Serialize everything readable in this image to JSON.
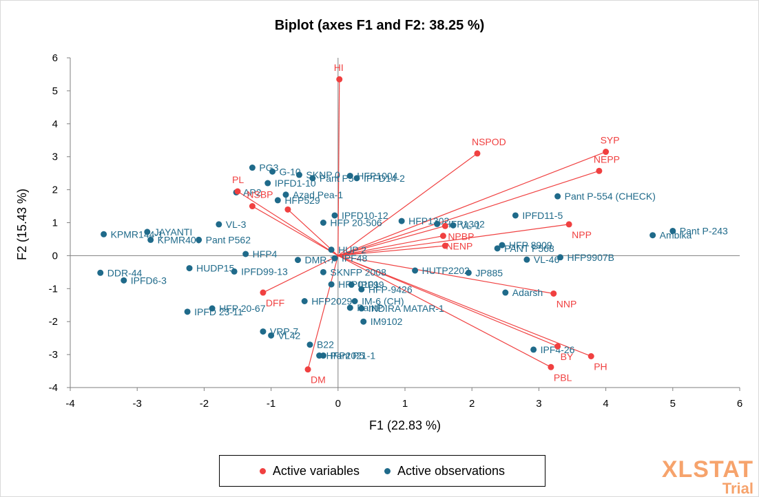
{
  "colors": {
    "variables": "#f04040",
    "observations": "#1f6a8a",
    "axis": "#7f7f7f",
    "tick_text": "#000000",
    "watermark": "#f6a36c"
  },
  "legend": {
    "variables_label": "Active variables",
    "observations_label": "Active observations",
    "placement": "bottom"
  },
  "watermark": {
    "main": "XLSTAT",
    "sub": "Trial"
  },
  "chart_data": {
    "type": "scatter",
    "title": "Biplot (axes F1 and F2: 38.25 %)",
    "xlabel": "F1 (22.83 %)",
    "ylabel": "F2 (15.43 %)",
    "xlim": [
      -4,
      6
    ],
    "ylim": [
      -4,
      6
    ],
    "xticks": [
      -4,
      -3,
      -2,
      -1,
      0,
      1,
      2,
      3,
      4,
      5,
      6
    ],
    "yticks": [
      -4,
      -3,
      -2,
      -1,
      0,
      1,
      2,
      3,
      4,
      5,
      6
    ],
    "grid": false,
    "variables": [
      {
        "label": "HI",
        "x": 0.02,
        "y": 5.35
      },
      {
        "label": "NSPOD",
        "x": 2.08,
        "y": 3.1
      },
      {
        "label": "SYP",
        "x": 4.0,
        "y": 3.15
      },
      {
        "label": "NEPP",
        "x": 3.9,
        "y": 2.57
      },
      {
        "label": "PL",
        "x": -1.5,
        "y": 1.95
      },
      {
        "label": "NSBP",
        "x": -1.28,
        "y": 1.5
      },
      {
        "label": "NPBP",
        "x": 1.6,
        "y": 0.9
      },
      {
        "label": "NPP",
        "x": 3.45,
        "y": 0.95
      },
      {
        "label": "NENP",
        "x": 1.57,
        "y": 0.6
      },
      {
        "label": "",
        "x": -0.75,
        "y": 1.4
      },
      {
        "label": "",
        "x": 1.6,
        "y": 0.3
      },
      {
        "label": "NNP",
        "x": 3.22,
        "y": -1.15
      },
      {
        "label": "DFF",
        "x": -1.12,
        "y": -1.12
      },
      {
        "label": "DM",
        "x": -0.45,
        "y": -3.45
      },
      {
        "label": "BY",
        "x": 3.28,
        "y": -2.75
      },
      {
        "label": "PH",
        "x": 3.78,
        "y": -3.05
      },
      {
        "label": "PBL",
        "x": 3.18,
        "y": -3.38
      }
    ],
    "observations": [
      {
        "label": "PG3",
        "x": -1.28,
        "y": 2.67
      },
      {
        "label": "G-10",
        "x": -0.98,
        "y": 2.55
      },
      {
        "label": "SKNP 0",
        "x": -0.58,
        "y": 2.45
      },
      {
        "label": "Pant P5",
        "x": -0.38,
        "y": 2.35
      },
      {
        "label": "HFP1004",
        "x": 0.18,
        "y": 2.42
      },
      {
        "label": "IPFD14-2",
        "x": 0.28,
        "y": 2.35
      },
      {
        "label": "IPFD1-10",
        "x": -1.05,
        "y": 2.2
      },
      {
        "label": "AP2",
        "x": -1.52,
        "y": 1.92
      },
      {
        "label": "Azad Pea-1",
        "x": -0.78,
        "y": 1.85
      },
      {
        "label": "HFP529",
        "x": -0.9,
        "y": 1.68
      },
      {
        "label": "VL-3",
        "x": -1.78,
        "y": 0.95
      },
      {
        "label": "IPFD10-12",
        "x": -0.05,
        "y": 1.22
      },
      {
        "label": "HFP 20-506",
        "x": -0.22,
        "y": 1.0
      },
      {
        "label": "HFP1302",
        "x": 0.95,
        "y": 1.05
      },
      {
        "label": "HFP1302",
        "x": 1.48,
        "y": 0.96
      },
      {
        "label": "VL-1",
        "x": 1.72,
        "y": 0.92
      },
      {
        "label": "Pant P-554 (CHECK)",
        "x": 3.28,
        "y": 1.8
      },
      {
        "label": "IPFD11-5",
        "x": 2.65,
        "y": 1.22
      },
      {
        "label": "Pant P-243",
        "x": 5.0,
        "y": 0.75
      },
      {
        "label": "Ambika",
        "x": 4.7,
        "y": 0.62
      },
      {
        "label": "KPMR144-1",
        "x": -3.5,
        "y": 0.65
      },
      {
        "label": "JAYANTI",
        "x": -2.85,
        "y": 0.72
      },
      {
        "label": "KPMR400",
        "x": -2.8,
        "y": 0.48
      },
      {
        "label": "Pant P562",
        "x": -2.08,
        "y": 0.48
      },
      {
        "label": "HFP 8909",
        "x": 2.45,
        "y": 0.32
      },
      {
        "label": "PANT P568",
        "x": 2.38,
        "y": 0.22
      },
      {
        "label": "VL-46",
        "x": 2.82,
        "y": -0.12
      },
      {
        "label": "HFP9907B",
        "x": 3.32,
        "y": -0.05
      },
      {
        "label": "HUP 2",
        "x": -0.1,
        "y": 0.18
      },
      {
        "label": "IPF48",
        "x": -0.05,
        "y": -0.08
      },
      {
        "label": "DMR-7",
        "x": -0.6,
        "y": -0.13
      },
      {
        "label": "HFP4",
        "x": -1.38,
        "y": 0.05
      },
      {
        "label": "HUDP15",
        "x": -2.22,
        "y": -0.38
      },
      {
        "label": "IPFD99-13",
        "x": -1.55,
        "y": -0.48
      },
      {
        "label": "DDR-44",
        "x": -3.55,
        "y": -0.52
      },
      {
        "label": "IPFD6-3",
        "x": -3.2,
        "y": -0.75
      },
      {
        "label": "SKNFP 2008",
        "x": -0.22,
        "y": -0.5
      },
      {
        "label": "HUTP2202",
        "x": 1.15,
        "y": -0.45
      },
      {
        "label": "JP885",
        "x": 1.95,
        "y": -0.52
      },
      {
        "label": "IPF99",
        "x": 0.2,
        "y": -0.88
      },
      {
        "label": "HFP0101",
        "x": -0.1,
        "y": -0.87
      },
      {
        "label": "HFP-9426",
        "x": 0.35,
        "y": -1.02
      },
      {
        "label": "Adarsh",
        "x": 2.5,
        "y": -1.12
      },
      {
        "label": "HFP2029",
        "x": -0.5,
        "y": -1.38
      },
      {
        "label": "IM-6 (CH)",
        "x": 0.25,
        "y": -1.38
      },
      {
        "label": "PantP",
        "x": 0.18,
        "y": -1.58
      },
      {
        "label": "INDIRA MATAR-1",
        "x": 0.35,
        "y": -1.6
      },
      {
        "label": "HFP 20-67",
        "x": -1.88,
        "y": -1.6
      },
      {
        "label": "IPFD 23-11",
        "x": -2.25,
        "y": -1.7
      },
      {
        "label": "IM9102",
        "x": 0.38,
        "y": -2.0
      },
      {
        "label": "VRP-7",
        "x": -1.12,
        "y": -2.3
      },
      {
        "label": "VL42",
        "x": -1.0,
        "y": -2.42
      },
      {
        "label": "B22",
        "x": -0.42,
        "y": -2.7
      },
      {
        "label": "HFP2021-1",
        "x": -0.28,
        "y": -3.03
      },
      {
        "label": "Pant P5",
        "x": -0.22,
        "y": -3.03
      },
      {
        "label": "IPF4-26",
        "x": 2.92,
        "y": -2.85
      }
    ]
  }
}
